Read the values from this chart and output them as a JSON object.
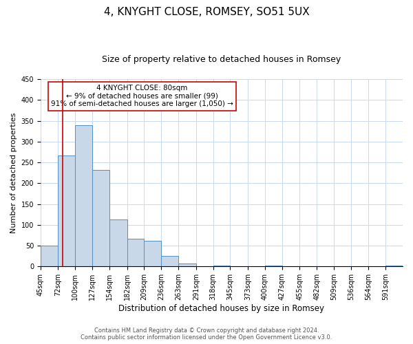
{
  "title": "4, KNYGHT CLOSE, ROMSEY, SO51 5UX",
  "subtitle": "Size of property relative to detached houses in Romsey",
  "xlabel": "Distribution of detached houses by size in Romsey",
  "ylabel": "Number of detached properties",
  "bin_labels": [
    "45sqm",
    "72sqm",
    "100sqm",
    "127sqm",
    "154sqm",
    "182sqm",
    "209sqm",
    "236sqm",
    "263sqm",
    "291sqm",
    "318sqm",
    "345sqm",
    "373sqm",
    "400sqm",
    "427sqm",
    "455sqm",
    "482sqm",
    "509sqm",
    "536sqm",
    "564sqm",
    "591sqm"
  ],
  "bin_edges": [
    45,
    72,
    100,
    127,
    154,
    182,
    209,
    236,
    263,
    291,
    318,
    345,
    373,
    400,
    427,
    455,
    482,
    509,
    536,
    564,
    591,
    618
  ],
  "bar_heights": [
    50,
    267,
    340,
    232,
    113,
    66,
    62,
    25,
    7,
    0,
    2,
    0,
    0,
    2,
    0,
    0,
    0,
    0,
    0,
    0,
    2
  ],
  "bar_color": "#c8d8e8",
  "bar_edge_color": "#5090c0",
  "grid_color": "#c8d8f0",
  "vline_x": 80,
  "vline_color": "#cc0000",
  "annotation_text": "4 KNYGHT CLOSE: 80sqm\n← 9% of detached houses are smaller (99)\n91% of semi-detached houses are larger (1,050) →",
  "annotation_box_color": "#ffffff",
  "annotation_box_edge_color": "#cc0000",
  "ylim": [
    0,
    450
  ],
  "footer_line1": "Contains HM Land Registry data © Crown copyright and database right 2024.",
  "footer_line2": "Contains public sector information licensed under the Open Government Licence v3.0.",
  "title_fontsize": 11,
  "subtitle_fontsize": 9,
  "xlabel_fontsize": 8.5,
  "ylabel_fontsize": 8,
  "tick_fontsize": 7,
  "footer_fontsize": 6,
  "annotation_fontsize": 7.5
}
